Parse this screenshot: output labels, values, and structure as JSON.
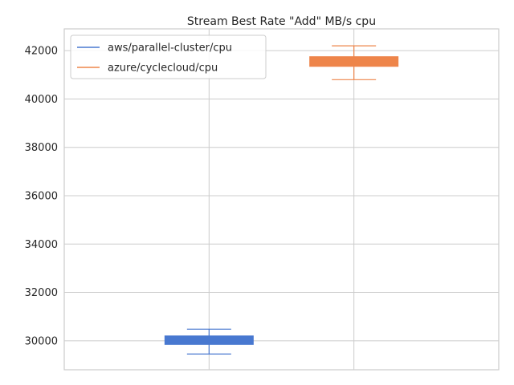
{
  "chart_data": {
    "type": "box",
    "title": "Stream Best Rate \"Add\" MB/s cpu",
    "xlabel": "",
    "ylabel": "",
    "ylim": [
      28800,
      42900
    ],
    "yticks": [
      30000,
      32000,
      34000,
      36000,
      38000,
      40000,
      42000
    ],
    "grid": true,
    "legend_position": "top-left",
    "series": [
      {
        "name": "aws/parallel-cluster/cpu",
        "color": "#4878d0",
        "whisker_low": 29450,
        "q1": 29850,
        "median": 30000,
        "q3": 30200,
        "whisker_high": 30480
      },
      {
        "name": "azure/cyclecloud/cpu",
        "color": "#ee854a",
        "whisker_low": 40800,
        "q1": 41350,
        "median": 41500,
        "q3": 41750,
        "whisker_high": 42200
      }
    ]
  }
}
